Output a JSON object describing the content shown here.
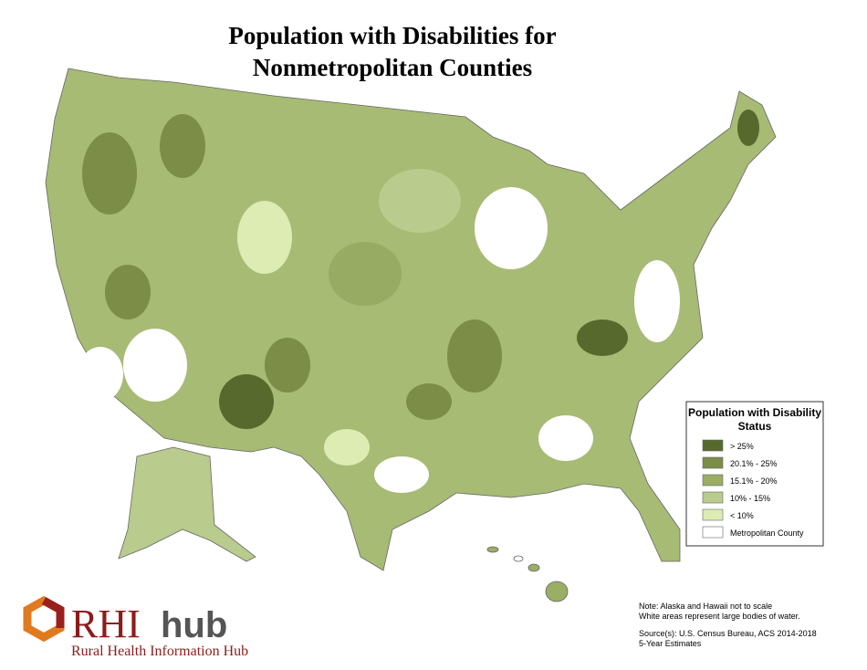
{
  "title": [
    "Population with Disabilities for",
    "Nonmetropolitan Counties"
  ],
  "legend": {
    "title": [
      "Population with Disability",
      "Status"
    ],
    "items": [
      {
        "label": "> 25%",
        "color": "#58692d"
      },
      {
        "label": "20.1% - 25%",
        "color": "#7b8d47"
      },
      {
        "label": "15.1% - 20%",
        "color": "#9aae64"
      },
      {
        "label": "10% - 15%",
        "color": "#b9cb8d"
      },
      {
        "label": "< 10%",
        "color": "#ddecb2"
      },
      {
        "label": "Metropolitan County",
        "color": "#ffffff"
      }
    ]
  },
  "notes": [
    "Note: Alaska and Hawaii not to scale",
    "White areas represent large bodies of water."
  ],
  "source": [
    "Source(s): U.S. Census Bureau, ACS  2014-2018",
    "5-Year Estimates"
  ],
  "logo": {
    "brand": "RHI",
    "brand_suffix": "hub",
    "tagline": "Rural Health Information Hub"
  }
}
